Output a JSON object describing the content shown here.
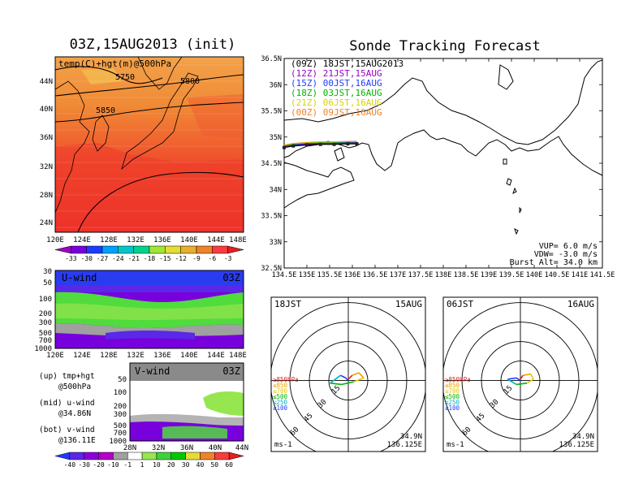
{
  "left": {
    "title": "03Z,15AUG2013 (init)",
    "panel_label": "temp(C)+hgt(m)@500hPa",
    "contours": [
      "5750",
      "5800",
      "5850"
    ],
    "lat_ticks": [
      "44N",
      "40N",
      "36N",
      "32N",
      "28N",
      "24N"
    ],
    "lon_ticks": [
      "120E",
      "124E",
      "128E",
      "132E",
      "136E",
      "140E",
      "144E",
      "148E"
    ],
    "colorbar": {
      "labels": [
        "-33",
        "-30",
        "-27",
        "-24",
        "-21",
        "-18",
        "-15",
        "-12",
        "-9",
        "-6",
        "-3"
      ],
      "colors": [
        "#a000c8",
        "#7800dc",
        "#1e3cff",
        "#00a0ff",
        "#00c8c8",
        "#00d28c",
        "#a0e632",
        "#e6dc32",
        "#e6af2d",
        "#f08228",
        "#fa3c3c",
        "#e61e1e"
      ]
    }
  },
  "uwind": {
    "label": "U-wind",
    "time": "03Z",
    "p_ticks": [
      "30",
      "50",
      "100",
      "200",
      "300",
      "500",
      "700",
      "1000"
    ],
    "lon_ticks": [
      "120E",
      "124E",
      "128E",
      "132E",
      "136E",
      "140E",
      "144E",
      "148E"
    ]
  },
  "vwind": {
    "label": "V-wind",
    "time": "03Z",
    "p_ticks": [
      "50",
      "100",
      "200",
      "300",
      "500",
      "700",
      "1000"
    ],
    "lat_ticks": [
      "28N",
      "32N",
      "36N",
      "40N",
      "44N"
    ]
  },
  "legend_notes": [
    {
      "l1": "(up) tmp+hgt",
      "l2": "@500hPa"
    },
    {
      "l1": "(mid) u-wind",
      "l2": "@34.86N"
    },
    {
      "l1": "(bot) v-wind",
      "l2": "@136.11E"
    }
  ],
  "wind_colorbar": {
    "labels": [
      "-40",
      "-30",
      "-20",
      "-10",
      "-1",
      "1",
      "10",
      "20",
      "30",
      "40",
      "50",
      "60"
    ],
    "colors": [
      "#1e3cff",
      "#5a28e6",
      "#8c00dc",
      "#b400c8",
      "#a0a0a0",
      "#ffffff",
      "#96e650",
      "#3cd23c",
      "#00c800",
      "#e6dc32",
      "#f08228",
      "#fa3c3c",
      "#e61e1e"
    ]
  },
  "forecast": {
    "title": "Sonde Tracking Forecast",
    "lat_ticks": [
      "36.5N",
      "36N",
      "35.5N",
      "35N",
      "34.5N",
      "34N",
      "33.5N",
      "33N",
      "32.5N"
    ],
    "lon_ticks": [
      "134.5E",
      "135E",
      "135.5E",
      "136E",
      "136.5E",
      "137E",
      "137.5E",
      "138E",
      "138.5E",
      "139E",
      "139.5E",
      "140E",
      "140.5E",
      "141E",
      "141.5E"
    ],
    "launches": [
      {
        "label": "(09Z)  18JST,15AUG2013",
        "color": "#000000"
      },
      {
        "label": "(12Z)  21JST,15AUG",
        "color": "#a000c8"
      },
      {
        "label": "(15Z)  00JST,16AUG",
        "color": "#1e3cff"
      },
      {
        "label": "(18Z)  03JST,16AUG",
        "color": "#00b400"
      },
      {
        "label": "(21Z)  06JST,16AUG",
        "color": "#dcd200"
      },
      {
        "label": "(00Z)  09JST,16AUG",
        "color": "#f08228"
      }
    ],
    "vup": "VUP=  6.0 m/s",
    "vdw": "VDW= -3.0 m/s",
    "burst": "Burst Alt= 34.0 km"
  },
  "hodo1": {
    "time": "18JST",
    "date": "15AUG",
    "rings": [
      "15",
      "30",
      "45",
      "60"
    ],
    "levels": [
      {
        "label": "≥850hPa",
        "color": "#e61e1e"
      },
      {
        "label": "≤850",
        "color": "#f0a000"
      },
      {
        "label": "≤700",
        "color": "#e6c800"
      },
      {
        "label": "≤500",
        "color": "#00b400"
      },
      {
        "label": "≤250",
        "color": "#00b4c8"
      },
      {
        "label": "≤100",
        "color": "#1e3cff"
      }
    ],
    "unit": "ms-1",
    "lat": "34.9N",
    "lon": "136.125E"
  },
  "hodo2": {
    "time": "06JST",
    "date": "16AUG",
    "rings": [
      "15",
      "30",
      "45",
      "60"
    ],
    "levels": [
      {
        "label": "≥850hPa",
        "color": "#e61e1e"
      },
      {
        "label": "≤850",
        "color": "#f0a000"
      },
      {
        "label": "≤700",
        "color": "#e6c800"
      },
      {
        "label": "≤500",
        "color": "#00b400"
      },
      {
        "label": "≤250",
        "color": "#00b4c8"
      },
      {
        "label": "≤100",
        "color": "#1e3cff"
      }
    ],
    "unit": "ms-1",
    "lat": "34.9N",
    "lon": "136.125E"
  },
  "chart_data": [
    {
      "type": "line",
      "title": "Sonde Tracking Forecast",
      "xlabel": "",
      "ylabel": "",
      "xlim": [
        134.5,
        141.5
      ],
      "ylim": [
        32.5,
        36.5
      ],
      "series": [
        {
          "name": "(09Z)  18JST,15AUG2013",
          "x": [
            134.5,
            134.7,
            135.0,
            135.3,
            135.6,
            135.9,
            136.1
          ],
          "y": [
            34.8,
            34.83,
            34.85,
            34.86,
            34.86,
            34.87,
            34.87
          ]
        }
      ]
    },
    {
      "type": "line",
      "title": "18JST 15AUG",
      "xlabel": "",
      "ylabel": "",
      "rings": [
        15,
        30,
        45,
        60
      ],
      "series": [
        {
          "name": "hodograph",
          "u": [
            0,
            -2,
            -6,
            -14,
            -5,
            4,
            12,
            8,
            3,
            0
          ],
          "v": [
            0,
            2,
            4,
            -2,
            -3,
            -1,
            2,
            6,
            4,
            1
          ]
        }
      ]
    },
    {
      "type": "line",
      "title": "06JST 16AUG",
      "xlabel": "",
      "ylabel": "",
      "rings": [
        15,
        30,
        45,
        60
      ],
      "series": [
        {
          "name": "hodograph",
          "u": [
            0,
            -3,
            -10,
            -3,
            5,
            10,
            8,
            2,
            0
          ],
          "v": [
            0,
            2,
            1,
            -3,
            -2,
            1,
            5,
            4,
            1
          ]
        }
      ]
    }
  ]
}
